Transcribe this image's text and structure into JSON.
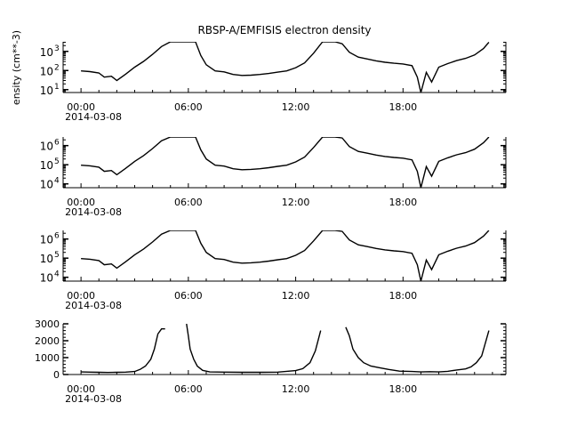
{
  "title": "RBSP-A/EMFISIS  electron density",
  "ylabel": "ensity (cm**-3)",
  "date_label": "2014-03-08",
  "x_ticks": [
    "00:00",
    "06:00",
    "12:00",
    "18:00"
  ],
  "x_range_hours": [
    -1,
    23.75
  ],
  "panels": [
    {
      "scale": "log",
      "ylim_exp": [
        0.85,
        3.5
      ],
      "ytick_exps": [
        1,
        2,
        3
      ],
      "ytick_labels": [
        "10",
        "10",
        "10"
      ],
      "ytick_superscripts": [
        "1",
        "2",
        "3"
      ]
    },
    {
      "scale": "log",
      "ylim_exp": [
        3.8,
        6.45
      ],
      "ytick_exps": [
        4,
        5,
        6
      ],
      "ytick_labels": [
        "10",
        "10",
        "10"
      ],
      "ytick_superscripts": [
        "4",
        "5",
        "6"
      ]
    },
    {
      "scale": "log",
      "ylim_exp": [
        3.8,
        6.45
      ],
      "ytick_exps": [
        4,
        5,
        6
      ],
      "ytick_labels": [
        "10",
        "10",
        "10"
      ],
      "ytick_superscripts": [
        "4",
        "5",
        "6"
      ]
    },
    {
      "scale": "linear",
      "ylim": [
        0,
        3000
      ],
      "ytick_values": [
        0,
        1000,
        2000,
        3000
      ],
      "ytick_labels": [
        "0",
        "1000",
        "2000",
        "3000"
      ]
    }
  ],
  "chart_data": [
    {
      "type": "line",
      "title": "RBSP-A/EMFISIS  electron density",
      "ylabel": "ensity (cm**-3)",
      "yscale": "log",
      "ylim": [
        7,
        3162
      ],
      "x_unit": "hours after 2014-03-08 00:00 UTC",
      "x": [
        0,
        0.5,
        1,
        1.3,
        1.7,
        2,
        2.5,
        3,
        3.5,
        4,
        4.5,
        5,
        5.3,
        6.4,
        6.7,
        7,
        7.5,
        8,
        8.5,
        9,
        9.5,
        10,
        10.5,
        11,
        11.5,
        12,
        12.5,
        13,
        13.5,
        14.2,
        14.6,
        15,
        15.5,
        16,
        16.5,
        17,
        17.5,
        18,
        18.5,
        18.8,
        19.0,
        19.3,
        19.6,
        20,
        20.5,
        21,
        21.5,
        22,
        22.5,
        22.8
      ],
      "values": [
        95,
        88,
        75,
        45,
        50,
        30,
        65,
        150,
        300,
        700,
        1800,
        3200,
        3500,
        3500,
        600,
        200,
        95,
        85,
        62,
        55,
        57,
        62,
        70,
        82,
        95,
        140,
        250,
        800,
        3300,
        3500,
        2500,
        900,
        500,
        400,
        320,
        270,
        240,
        220,
        180,
        45,
        6,
        80,
        25,
        150,
        230,
        330,
        430,
        650,
        1400,
        3000
      ]
    },
    {
      "type": "line",
      "yscale": "log",
      "ylim": [
        6310,
        2818383
      ],
      "x_unit": "hours after 2014-03-08 00:00 UTC",
      "x": [
        0,
        0.5,
        1,
        1.3,
        1.7,
        2,
        2.5,
        3,
        3.5,
        4,
        4.5,
        5,
        5.3,
        6.4,
        6.7,
        7,
        7.5,
        8,
        8.5,
        9,
        9.5,
        10,
        10.5,
        11,
        11.5,
        12,
        12.5,
        13,
        13.5,
        14.2,
        14.6,
        15,
        15.5,
        16,
        16.5,
        17,
        17.5,
        18,
        18.5,
        18.8,
        19.0,
        19.3,
        19.6,
        20,
        20.5,
        21,
        21.5,
        22,
        22.5,
        22.8
      ],
      "values": [
        95000,
        88000,
        75000,
        45000,
        50000,
        30000,
        65000,
        150000,
        300000,
        700000,
        1800000,
        3200000,
        3500000,
        3500000,
        600000,
        200000,
        95000,
        85000,
        62000,
        55000,
        57000,
        62000,
        70000,
        82000,
        95000,
        140000,
        250000,
        800000,
        3300000,
        3500000,
        2500000,
        900000,
        500000,
        400000,
        320000,
        270000,
        240000,
        220000,
        180000,
        45000,
        6000,
        80000,
        25000,
        150000,
        230000,
        330000,
        430000,
        650000,
        1400000,
        3000000
      ]
    },
    {
      "type": "line",
      "yscale": "log",
      "ylim": [
        6310,
        2818383
      ],
      "x_unit": "hours after 2014-03-08 00:00 UTC",
      "x": [
        0,
        0.5,
        1,
        1.3,
        1.7,
        2,
        2.5,
        3,
        3.5,
        4,
        4.5,
        5,
        5.3,
        6.4,
        6.7,
        7,
        7.5,
        8,
        8.5,
        9,
        9.5,
        10,
        10.5,
        11,
        11.5,
        12,
        12.5,
        13,
        13.5,
        14.2,
        14.6,
        15,
        15.5,
        16,
        16.5,
        17,
        17.5,
        18,
        18.5,
        18.8,
        19.0,
        19.3,
        19.6,
        20,
        20.5,
        21,
        21.5,
        22,
        22.5,
        22.8
      ],
      "values": [
        95000,
        88000,
        75000,
        45000,
        50000,
        30000,
        65000,
        150000,
        300000,
        700000,
        1800000,
        3200000,
        3500000,
        3500000,
        600000,
        200000,
        95000,
        85000,
        62000,
        55000,
        57000,
        62000,
        70000,
        82000,
        95000,
        140000,
        250000,
        800000,
        3300000,
        3500000,
        2500000,
        900000,
        500000,
        400000,
        320000,
        270000,
        240000,
        220000,
        180000,
        45000,
        6000,
        80000,
        25000,
        150000,
        230000,
        330000,
        430000,
        650000,
        1400000,
        3000000
      ]
    },
    {
      "type": "line",
      "yscale": "linear",
      "ylim": [
        0,
        3000
      ],
      "x_unit": "hours after 2014-03-08 00:00 UTC",
      "segments": [
        {
          "x": [
            0,
            0.5,
            1,
            1.5,
            2,
            2.5,
            3,
            3.3,
            3.6,
            3.9,
            4.1,
            4.3,
            4.5,
            4.7
          ],
          "values": [
            150,
            140,
            130,
            120,
            130,
            140,
            180,
            300,
            500,
            900,
            1500,
            2400,
            2700,
            2700
          ]
        },
        {
          "x": [
            5.9,
            6.0,
            6.1,
            6.3,
            6.5,
            6.8,
            7.2,
            8,
            9,
            10,
            11,
            12,
            12.4,
            12.8,
            13.1,
            13.4
          ],
          "values": [
            3000,
            2300,
            1500,
            900,
            500,
            250,
            150,
            140,
            130,
            130,
            140,
            230,
            350,
            700,
            1400,
            2600
          ]
        },
        {
          "x": [
            14.8,
            15.0,
            15.2,
            15.5,
            15.8,
            16.2,
            16.7,
            17.2,
            17.8,
            18.5,
            19,
            19.5,
            20,
            20.5,
            21,
            21.5,
            21.8,
            22.1,
            22.4,
            22.8
          ],
          "values": [
            2800,
            2300,
            1500,
            1000,
            700,
            500,
            400,
            300,
            200,
            180,
            150,
            170,
            150,
            190,
            270,
            330,
            450,
            700,
            1100,
            2600
          ]
        }
      ]
    }
  ]
}
